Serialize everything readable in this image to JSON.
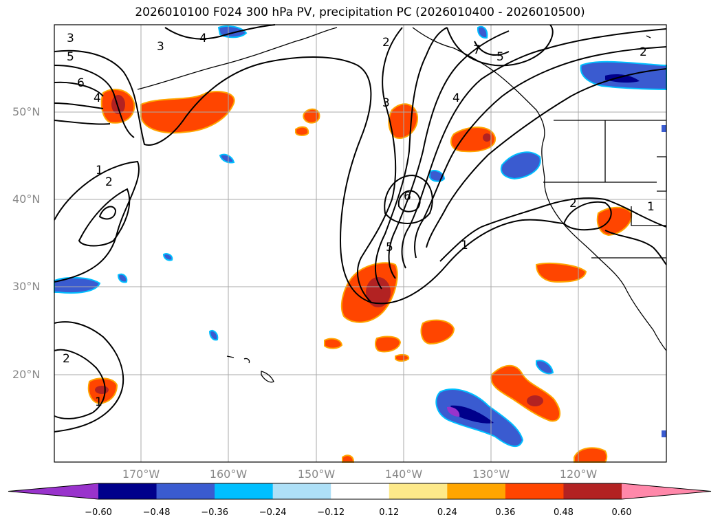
{
  "title": "2026010100 F024 300 hPa PV, precipitation PC (2026010400 - 2026010500)",
  "map": {
    "lat_labels": [
      "50°N",
      "40°N",
      "30°N",
      "20°N"
    ],
    "lon_labels": [
      "170°W",
      "160°W",
      "150°W",
      "140°W",
      "130°W",
      "120°W"
    ],
    "contour_labels": [
      "3",
      "4",
      "5",
      "6",
      "4",
      "2",
      "3",
      "7",
      "5",
      "2",
      "4",
      "1",
      "2",
      "3",
      "6",
      "5",
      "1",
      "2",
      "1",
      "2",
      "1"
    ]
  },
  "colorbar": {
    "ticks": [
      "−0.60",
      "−0.48",
      "−0.36",
      "−0.24",
      "−0.12",
      "0.12",
      "0.24",
      "0.36",
      "0.48",
      "0.60"
    ],
    "colors": [
      "#9933cc",
      "#00008b",
      "#3a5bd0",
      "#00bfff",
      "#aee0f7",
      "#ffffff",
      "#fde98a",
      "#ffa500",
      "#ff4500",
      "#b22222",
      "#ff88aa"
    ]
  }
}
